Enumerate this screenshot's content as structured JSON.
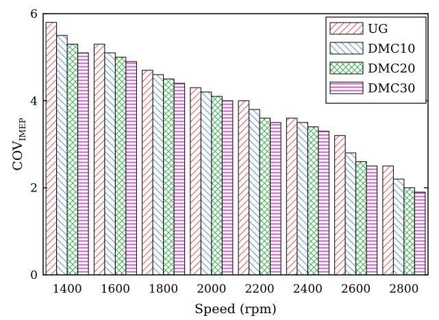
{
  "chart_data": {
    "type": "bar",
    "categories": [
      "1400",
      "1600",
      "1800",
      "2000",
      "2200",
      "2400",
      "2600",
      "2800"
    ],
    "series": [
      {
        "name": "UG",
        "values": [
          5.8,
          5.3,
          4.7,
          4.3,
          4.0,
          3.6,
          3.2,
          2.5
        ],
        "color": "#e8696e",
        "hatch": "diagonal-up"
      },
      {
        "name": "DMC10",
        "values": [
          5.5,
          5.1,
          4.6,
          4.2,
          3.8,
          3.5,
          2.8,
          2.2
        ],
        "color": "#6a9fd6",
        "hatch": "diagonal-down"
      },
      {
        "name": "DMC20",
        "values": [
          5.3,
          5.0,
          4.5,
          4.1,
          3.6,
          3.4,
          2.6,
          2.0
        ],
        "color": "#39b14a",
        "hatch": "crosshatch"
      },
      {
        "name": "DMC30",
        "values": [
          5.1,
          4.9,
          4.4,
          4.0,
          3.5,
          3.3,
          2.5,
          1.9
        ],
        "color": "#c566c7",
        "hatch": "horizontal"
      }
    ],
    "xlabel": "Speed (rpm)",
    "ylabel": "COV",
    "ylabel_sub": "IMEP",
    "ylim": [
      0,
      6
    ],
    "yticks": [
      "0",
      "2",
      "4",
      "6"
    ],
    "legend_position": "top-right",
    "grid": false
  }
}
